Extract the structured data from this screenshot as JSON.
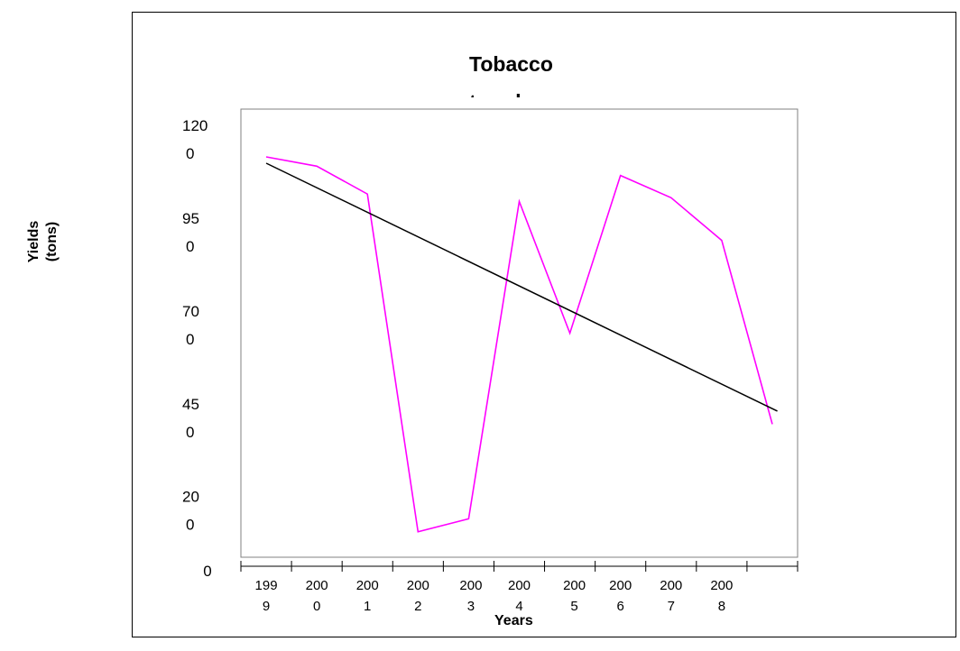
{
  "chart_data": {
    "type": "line",
    "title": "Tobacco trends",
    "xlabel": "Years",
    "ylabel": "Yields (tons)",
    "categories": [
      "1999",
      "2000",
      "2001",
      "2002",
      "2003",
      "2004",
      "2005",
      "2006",
      "2007",
      "2008"
    ],
    "y_tick_labels": [
      "0",
      "200",
      "450",
      "700",
      "950",
      "1200"
    ],
    "ylim": [
      0,
      1200
    ],
    "x_points": [
      1999,
      2000,
      2001,
      2002,
      2003,
      2004,
      2005,
      2006,
      2007,
      2008,
      2009
    ],
    "xlim": [
      1998.5,
      2009.5
    ],
    "series": [
      {
        "color": "#ff00ff",
        "x": [
          1999,
          2000,
          2001,
          2002,
          2003,
          2004,
          2005,
          2006,
          2007,
          2008,
          2009
        ],
        "values": [
          1115,
          1090,
          1015,
          105,
          140,
          995,
          640,
          1065,
          1005,
          890,
          395
        ]
      }
    ],
    "trendline": {
      "color": "#000000",
      "x": [
        1999,
        2009.1
      ],
      "y": [
        1098,
        430
      ]
    },
    "legend": "none",
    "grid": false
  }
}
